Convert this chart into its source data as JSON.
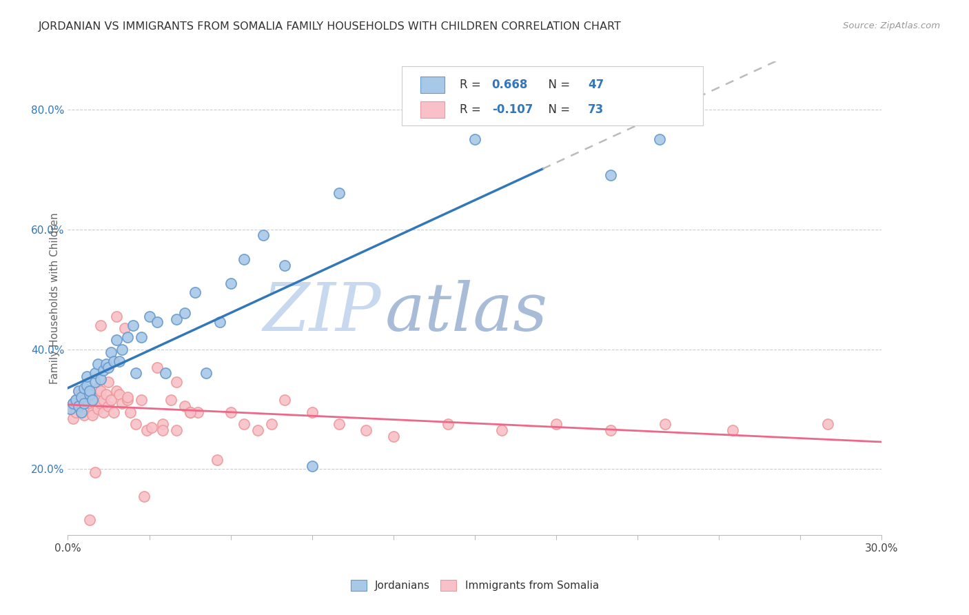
{
  "title": "JORDANIAN VS IMMIGRANTS FROM SOMALIA FAMILY HOUSEHOLDS WITH CHILDREN CORRELATION CHART",
  "source": "Source: ZipAtlas.com",
  "ylabel": "Family Households with Children",
  "xlim": [
    0.0,
    0.3
  ],
  "ylim": [
    0.09,
    0.88
  ],
  "xticks": [
    0.0,
    0.03,
    0.06,
    0.09,
    0.12,
    0.15,
    0.18,
    0.21,
    0.24,
    0.27,
    0.3
  ],
  "yticks": [
    0.2,
    0.4,
    0.6,
    0.8
  ],
  "yticklabels": [
    "20.0%",
    "40.0%",
    "60.0%",
    "80.0%"
  ],
  "blue_fill": "#A8C8E8",
  "blue_edge": "#6699CC",
  "pink_fill": "#F8C0C8",
  "pink_edge": "#EE9999",
  "blue_line_color": "#3377BB",
  "pink_line_color": "#EE6688",
  "dashed_line_color": "#BBBBBB",
  "legend1_label_bottom": "Jordanians",
  "legend2_label_bottom": "Immigrants from Somalia",
  "watermark_zip": "ZIP",
  "watermark_atlas": "atlas",
  "background_color": "#FFFFFF",
  "grid_color": "#CCCCCC",
  "blue_scatter_x": [
    0.001,
    0.002,
    0.003,
    0.004,
    0.004,
    0.005,
    0.005,
    0.006,
    0.006,
    0.007,
    0.007,
    0.008,
    0.008,
    0.009,
    0.01,
    0.01,
    0.011,
    0.012,
    0.013,
    0.014,
    0.015,
    0.016,
    0.017,
    0.018,
    0.019,
    0.02,
    0.022,
    0.024,
    0.025,
    0.027,
    0.03,
    0.033,
    0.036,
    0.04,
    0.043,
    0.047,
    0.051,
    0.056,
    0.06,
    0.065,
    0.072,
    0.08,
    0.09,
    0.1,
    0.15,
    0.2,
    0.218
  ],
  "blue_scatter_y": [
    0.3,
    0.31,
    0.315,
    0.305,
    0.33,
    0.295,
    0.32,
    0.31,
    0.335,
    0.34,
    0.355,
    0.325,
    0.33,
    0.315,
    0.345,
    0.36,
    0.375,
    0.35,
    0.365,
    0.375,
    0.37,
    0.395,
    0.38,
    0.415,
    0.38,
    0.4,
    0.42,
    0.44,
    0.36,
    0.42,
    0.455,
    0.445,
    0.36,
    0.45,
    0.46,
    0.495,
    0.36,
    0.445,
    0.51,
    0.55,
    0.59,
    0.54,
    0.205,
    0.66,
    0.75,
    0.69,
    0.75
  ],
  "pink_scatter_x": [
    0.001,
    0.002,
    0.002,
    0.003,
    0.003,
    0.004,
    0.004,
    0.005,
    0.005,
    0.006,
    0.006,
    0.007,
    0.007,
    0.008,
    0.008,
    0.009,
    0.009,
    0.01,
    0.01,
    0.011,
    0.011,
    0.012,
    0.012,
    0.013,
    0.013,
    0.014,
    0.015,
    0.015,
    0.016,
    0.017,
    0.018,
    0.019,
    0.02,
    0.021,
    0.022,
    0.023,
    0.025,
    0.027,
    0.029,
    0.031,
    0.033,
    0.035,
    0.038,
    0.04,
    0.043,
    0.045,
    0.048,
    0.055,
    0.06,
    0.065,
    0.07,
    0.075,
    0.08,
    0.09,
    0.1,
    0.11,
    0.12,
    0.14,
    0.16,
    0.18,
    0.2,
    0.22,
    0.245,
    0.008,
    0.01,
    0.012,
    0.018,
    0.022,
    0.028,
    0.035,
    0.04,
    0.045,
    0.28
  ],
  "pink_scatter_y": [
    0.3,
    0.285,
    0.31,
    0.295,
    0.315,
    0.305,
    0.33,
    0.295,
    0.325,
    0.29,
    0.315,
    0.3,
    0.33,
    0.31,
    0.325,
    0.295,
    0.29,
    0.315,
    0.31,
    0.335,
    0.3,
    0.33,
    0.31,
    0.315,
    0.295,
    0.325,
    0.305,
    0.345,
    0.315,
    0.295,
    0.33,
    0.325,
    0.31,
    0.435,
    0.315,
    0.295,
    0.275,
    0.315,
    0.265,
    0.27,
    0.37,
    0.275,
    0.315,
    0.265,
    0.305,
    0.295,
    0.295,
    0.215,
    0.295,
    0.275,
    0.265,
    0.275,
    0.315,
    0.295,
    0.275,
    0.265,
    0.255,
    0.275,
    0.265,
    0.275,
    0.265,
    0.275,
    0.265,
    0.115,
    0.195,
    0.44,
    0.455,
    0.32,
    0.155,
    0.265,
    0.345,
    0.295,
    0.275
  ]
}
